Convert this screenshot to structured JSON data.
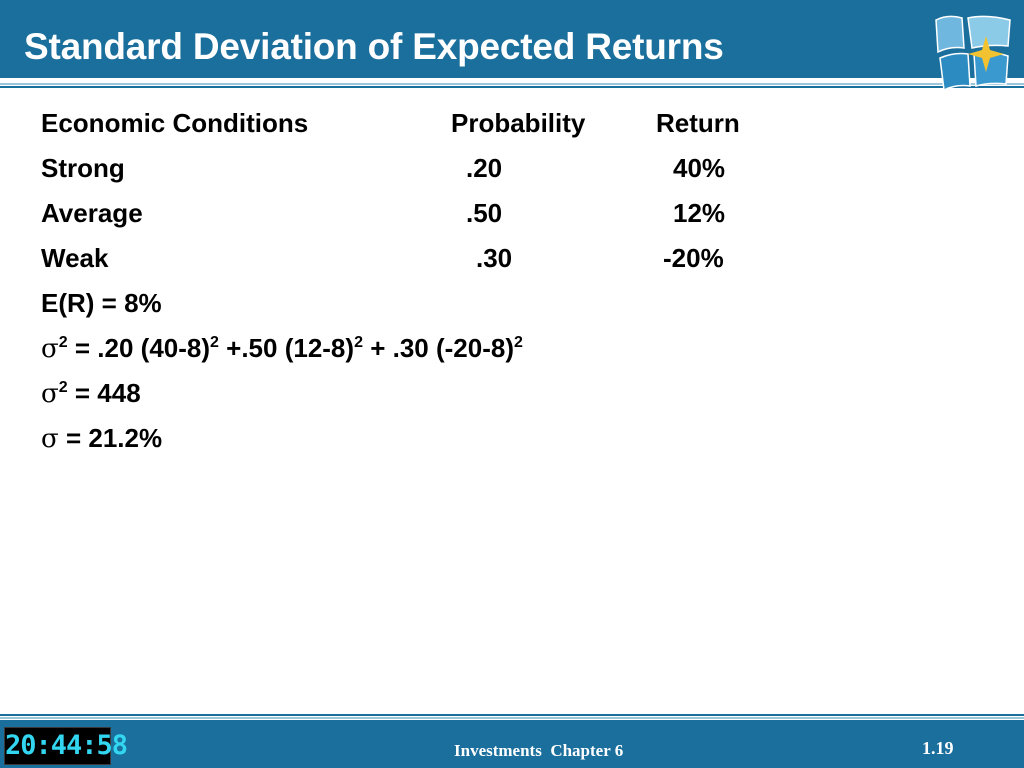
{
  "slide": {
    "title": "Standard Deviation of Expected Returns"
  },
  "table": {
    "headers": [
      "Economic Conditions",
      "Probability",
      "Return"
    ],
    "rows": [
      {
        "condition": "Strong",
        "probability": ".20",
        "return": "40%"
      },
      {
        "condition": "Average",
        "probability": ".50",
        "return": "12%"
      },
      {
        "condition": "Weak",
        "probability": ".30",
        "return": "-20%"
      }
    ]
  },
  "lines": {
    "expected_return": "E(R) = 8%",
    "sigma_symbol": "σ",
    "variance_formula": {
      "exp": "2",
      "p1": " = .20 (40-8)",
      "p2": " +.50 (12-8)",
      "p3": " + .30 (-20-8)"
    },
    "variance_value": " = 448",
    "std_dev_value": " = 21.2%"
  },
  "footer": {
    "clock": "20:44:58",
    "text": "Investments  Chapter 6",
    "page": "1.19"
  },
  "colors": {
    "header_blue": "#1b6f9c",
    "light_stripe": "#9cc6dc",
    "clock_digits": "#33d6f0"
  }
}
